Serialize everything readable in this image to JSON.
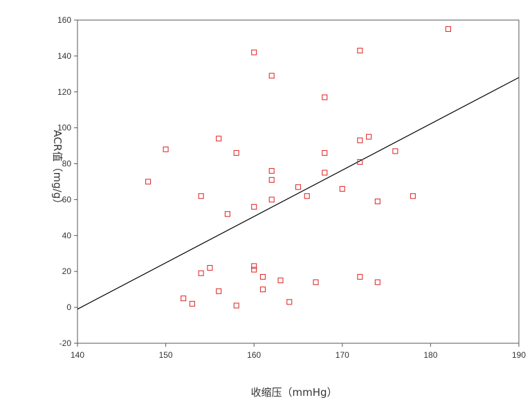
{
  "chart_data": {
    "type": "scatter",
    "title": "",
    "xlabel": "收缩压（mmHg）",
    "ylabel": "ACR值（mg/g）",
    "xlim": [
      140,
      190
    ],
    "ylim": [
      -20,
      160
    ],
    "xticks": [
      140,
      150,
      160,
      170,
      180,
      190
    ],
    "yticks": [
      -20,
      0,
      20,
      40,
      60,
      80,
      100,
      120,
      140,
      160
    ],
    "grid": false,
    "legend": "none",
    "marker": "square",
    "marker_color": "#e03030",
    "line_color": "#000000",
    "series": [
      {
        "points": [
          [
            148,
            70
          ],
          [
            150,
            88
          ],
          [
            152,
            5
          ],
          [
            153,
            2
          ],
          [
            154,
            19
          ],
          [
            154,
            62
          ],
          [
            155,
            22
          ],
          [
            156,
            94
          ],
          [
            156,
            9
          ],
          [
            157,
            52
          ],
          [
            158,
            86
          ],
          [
            158,
            1
          ],
          [
            160,
            142
          ],
          [
            160,
            56
          ],
          [
            160,
            23
          ],
          [
            160,
            21
          ],
          [
            161,
            17
          ],
          [
            161,
            10
          ],
          [
            162,
            129
          ],
          [
            162,
            76
          ],
          [
            162,
            71
          ],
          [
            162,
            60
          ],
          [
            163,
            15
          ],
          [
            164,
            3
          ],
          [
            165,
            67
          ],
          [
            166,
            62
          ],
          [
            167,
            14
          ],
          [
            168,
            117
          ],
          [
            168,
            86
          ],
          [
            168,
            75
          ],
          [
            170,
            66
          ],
          [
            172,
            143
          ],
          [
            172,
            93
          ],
          [
            172,
            81
          ],
          [
            172,
            17
          ],
          [
            173,
            95
          ],
          [
            174,
            59
          ],
          [
            174,
            14
          ],
          [
            176,
            87
          ],
          [
            178,
            62
          ],
          [
            182,
            155
          ]
        ]
      }
    ],
    "trendline": {
      "x": [
        140,
        190
      ],
      "y": [
        -1,
        128
      ]
    }
  }
}
